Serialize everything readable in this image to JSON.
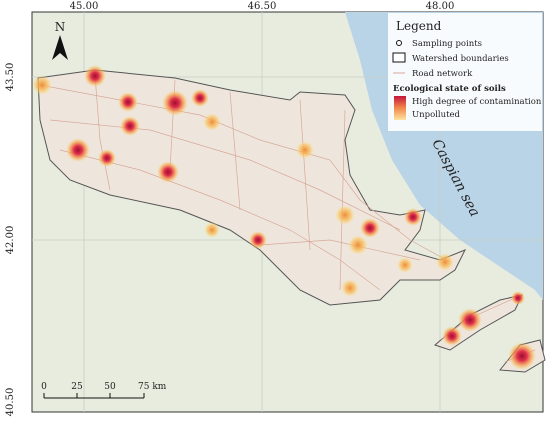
{
  "axes": {
    "top_labels": [
      "45.00",
      "46.50",
      "48.00"
    ],
    "left_labels": [
      "43.50",
      "42.00",
      "40.50"
    ]
  },
  "north_arrow": "N",
  "legend": {
    "title": "Legend",
    "items": [
      "Sampling points",
      "Watershed boundaries",
      "Road network"
    ],
    "subtitle": "Ecological state of soils",
    "gradient_labels": [
      "High degree of contamination",
      "Unpolluted"
    ]
  },
  "sea_label": "Caspian sea",
  "scale_bar": {
    "labels": [
      "0",
      "25",
      "50",
      "75 km"
    ]
  }
}
